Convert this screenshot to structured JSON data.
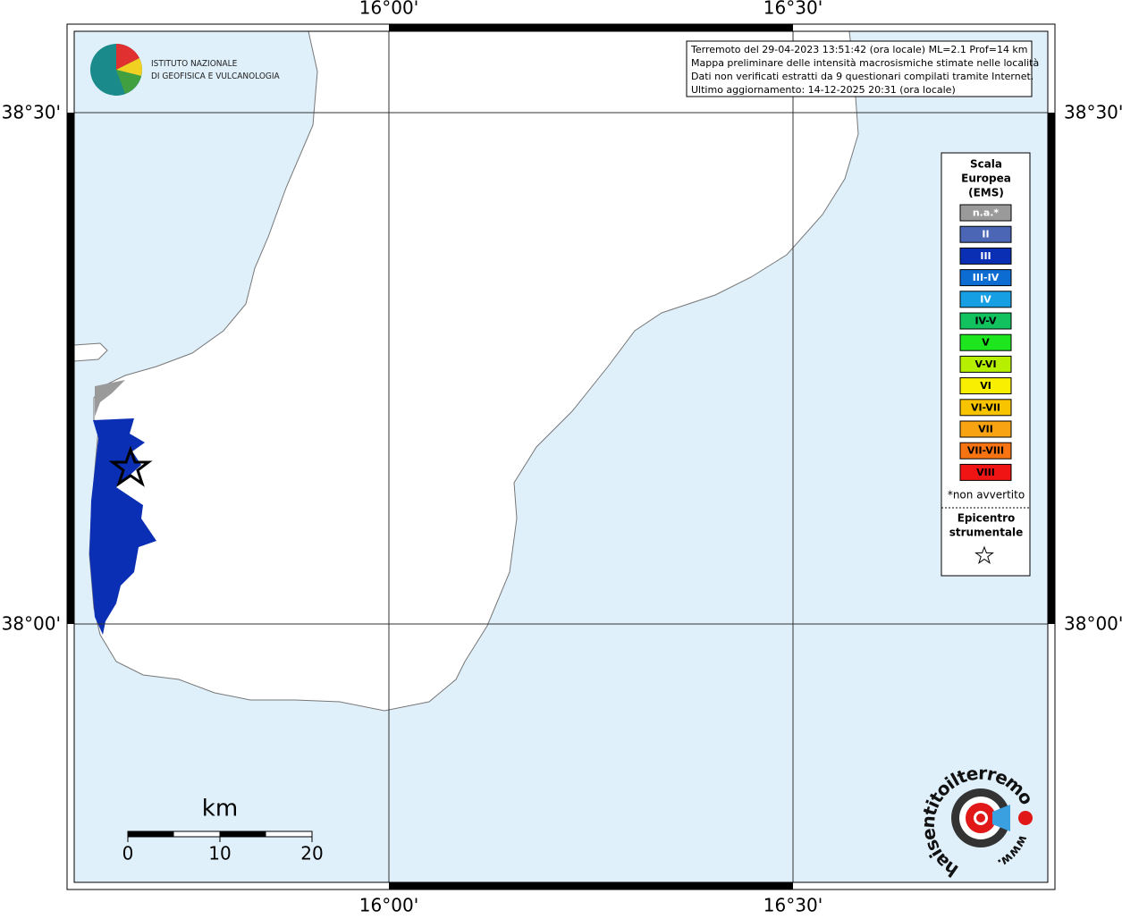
{
  "grid": {
    "lon_labels": [
      "16°00'",
      "16°30'"
    ],
    "lat_labels": [
      "38°30'",
      "38°00'"
    ]
  },
  "info": [
    "Terremoto del 29-04-2023 13:51:42 (ora locale) ML=2.1 Prof=14 km",
    "Mappa preliminare delle intensità macrosismiche stimate nelle località",
    "Dati non verificati estratti da 9 questionari compilati tramite Internet.",
    "Ultimo aggiornamento: 14-12-2025 20:31 (ora locale)"
  ],
  "legend": {
    "title": [
      "Scala",
      "Europea",
      "(EMS)"
    ],
    "classes": [
      {
        "label": "n.a.*",
        "color": "#9a9a9a",
        "text_color": "#ffffff"
      },
      {
        "label": "II",
        "color": "#4a66b4",
        "text_color": "#ffffff"
      },
      {
        "label": "III",
        "color": "#0a2fb4",
        "text_color": "#ffffff"
      },
      {
        "label": "III-IV",
        "color": "#0c6cd2",
        "text_color": "#ffffff"
      },
      {
        "label": "IV",
        "color": "#169fe2",
        "text_color": "#ffffff"
      },
      {
        "label": "IV-V",
        "color": "#12c25e",
        "text_color": "#000000"
      },
      {
        "label": "V",
        "color": "#1ee61e",
        "text_color": "#000000"
      },
      {
        "label": "V-VI",
        "color": "#b6f000",
        "text_color": "#000000"
      },
      {
        "label": "VI",
        "color": "#f8f000",
        "text_color": "#000000"
      },
      {
        "label": "VI-VII",
        "color": "#f8c400",
        "text_color": "#000000"
      },
      {
        "label": "VII",
        "color": "#f8a412",
        "text_color": "#000000"
      },
      {
        "label": "VII-VIII",
        "color": "#f87412",
        "text_color": "#000000"
      },
      {
        "label": "VIII",
        "color": "#f01414",
        "text_color": "#000000"
      }
    ],
    "note": "*non avvertito",
    "epicenter": [
      "Epicentro",
      "strumentale"
    ]
  },
  "scale_bar": {
    "unit": "km",
    "ticks": [
      0,
      10,
      20
    ]
  },
  "logos": {
    "ingv": [
      "ISTITUTO NAZIONALE",
      "DI GEOFISICA E VULCANOLOGIA"
    ],
    "hsit": [
      "haisentitoilterremoto.it",
      "www."
    ]
  }
}
